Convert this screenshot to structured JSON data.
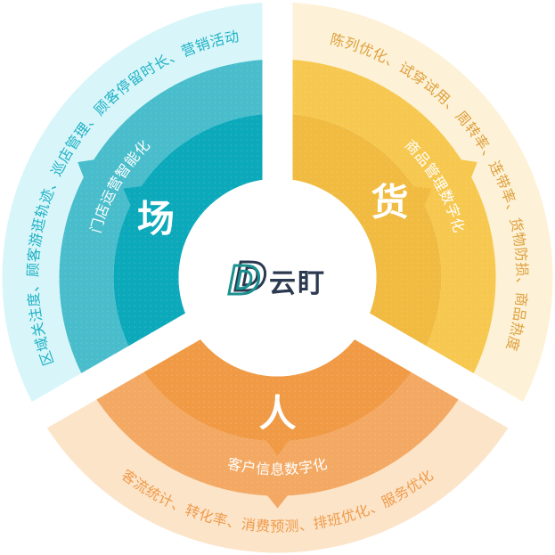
{
  "background": "#ffffff",
  "ring_label_color": "#ffffff",
  "gap_angles_deg": [
    90,
    210,
    330
  ],
  "center_logo": {
    "monogram": "D",
    "wordmark": "云盯",
    "navy": "#2b3a50",
    "teal": "#1b9190"
  },
  "segments": [
    {
      "id": "place",
      "core_label": "场",
      "middle_label": "门店运营智能化",
      "outer_label": "区域关注度、顾客游逛轨迹、巡店管理、顾客停留时长、营销活动",
      "angle_start": 90,
      "angle_end": 210,
      "colors": {
        "inner": "#0ca9bb",
        "middle": "#49bdcb",
        "outer": "#d8f6fa",
        "label": "#1fb1c5"
      }
    },
    {
      "id": "goods",
      "core_label": "货",
      "middle_label": "商品管理数字化",
      "outer_label": "陈列优化、试穿试用、周转率、连带率、货物防损、商品热度",
      "angle_start": -30,
      "angle_end": 90,
      "colors": {
        "inner": "#f0bb40",
        "middle": "#f7c84f",
        "outer": "#fdf2d7",
        "label": "#dfa03e"
      }
    },
    {
      "id": "people",
      "core_label": "人",
      "middle_label": "客户信息数字化",
      "outer_label": "客流统计、转化率、消费预测、排班优化、服务优化",
      "angle_start": 210,
      "angle_end": 330,
      "colors": {
        "inner": "#f09a45",
        "middle": "#f3a963",
        "outer": "#fce4c9",
        "label": "#ef9b4a"
      }
    }
  ]
}
